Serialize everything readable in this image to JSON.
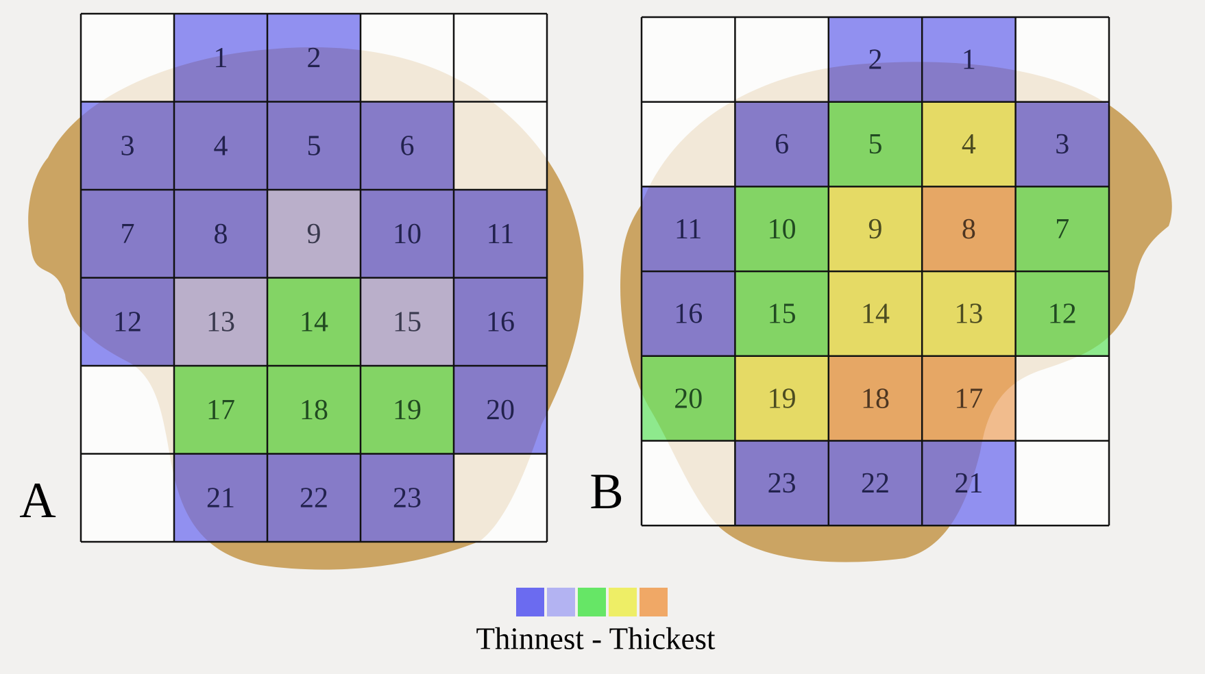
{
  "panels": [
    {
      "label": "A",
      "rows": [
        [
          null,
          {
            "label": "1",
            "color": "#6b6bf0"
          },
          {
            "label": "2",
            "color": "#6b6bf0"
          },
          null,
          null
        ],
        [
          {
            "label": "3",
            "color": "#6b6bf0"
          },
          {
            "label": "4",
            "color": "#6b6bf0"
          },
          {
            "label": "5",
            "color": "#6b6bf0"
          },
          {
            "label": "6",
            "color": "#6b6bf0"
          },
          null
        ],
        [
          {
            "label": "7",
            "color": "#6b6bf0"
          },
          {
            "label": "8",
            "color": "#6b6bf0"
          },
          {
            "label": "9",
            "color": "#b3b3f2"
          },
          {
            "label": "10",
            "color": "#6b6bf0"
          },
          {
            "label": "11",
            "color": "#6b6bf0"
          }
        ],
        [
          {
            "label": "12",
            "color": "#6b6bf0"
          },
          {
            "label": "13",
            "color": "#b3b3f2"
          },
          {
            "label": "14",
            "color": "#66e666"
          },
          {
            "label": "15",
            "color": "#b3b3f2"
          },
          {
            "label": "16",
            "color": "#6b6bf0"
          }
        ],
        [
          null,
          {
            "label": "17",
            "color": "#66e666"
          },
          {
            "label": "18",
            "color": "#66e666"
          },
          {
            "label": "19",
            "color": "#66e666"
          },
          {
            "label": "20",
            "color": "#6b6bf0"
          }
        ],
        [
          null,
          {
            "label": "21",
            "color": "#6b6bf0"
          },
          {
            "label": "22",
            "color": "#6b6bf0"
          },
          {
            "label": "23",
            "color": "#6b6bf0"
          },
          null
        ]
      ]
    },
    {
      "label": "B",
      "rows": [
        [
          null,
          null,
          {
            "label": "2",
            "color": "#6b6bf0"
          },
          {
            "label": "1",
            "color": "#6b6bf0"
          },
          null
        ],
        [
          null,
          {
            "label": "6",
            "color": "#6b6bf0"
          },
          {
            "label": "5",
            "color": "#66e666"
          },
          {
            "label": "4",
            "color": "#eeee66"
          },
          {
            "label": "3",
            "color": "#6b6bf0"
          }
        ],
        [
          {
            "label": "11",
            "color": "#6b6bf0"
          },
          {
            "label": "10",
            "color": "#66e666"
          },
          {
            "label": "9",
            "color": "#eeee66"
          },
          {
            "label": "8",
            "color": "#f0a866"
          },
          {
            "label": "7",
            "color": "#66e666"
          }
        ],
        [
          {
            "label": "16",
            "color": "#6b6bf0"
          },
          {
            "label": "15",
            "color": "#66e666"
          },
          {
            "label": "14",
            "color": "#eeee66"
          },
          {
            "label": "13",
            "color": "#eeee66"
          },
          {
            "label": "12",
            "color": "#66e666"
          }
        ],
        [
          {
            "label": "20",
            "color": "#66e666"
          },
          {
            "label": "19",
            "color": "#eeee66"
          },
          {
            "label": "18",
            "color": "#f0a866"
          },
          {
            "label": "17",
            "color": "#f0a866"
          },
          null
        ],
        [
          null,
          {
            "label": "23",
            "color": "#6b6bf0"
          },
          {
            "label": "22",
            "color": "#6b6bf0"
          },
          {
            "label": "21",
            "color": "#6b6bf0"
          },
          null
        ]
      ]
    }
  ],
  "legend": {
    "colors": [
      "#6b6bf0",
      "#b3b3f2",
      "#66e666",
      "#eeee66",
      "#f0a866"
    ],
    "caption": "Thinnest - Thickest"
  }
}
